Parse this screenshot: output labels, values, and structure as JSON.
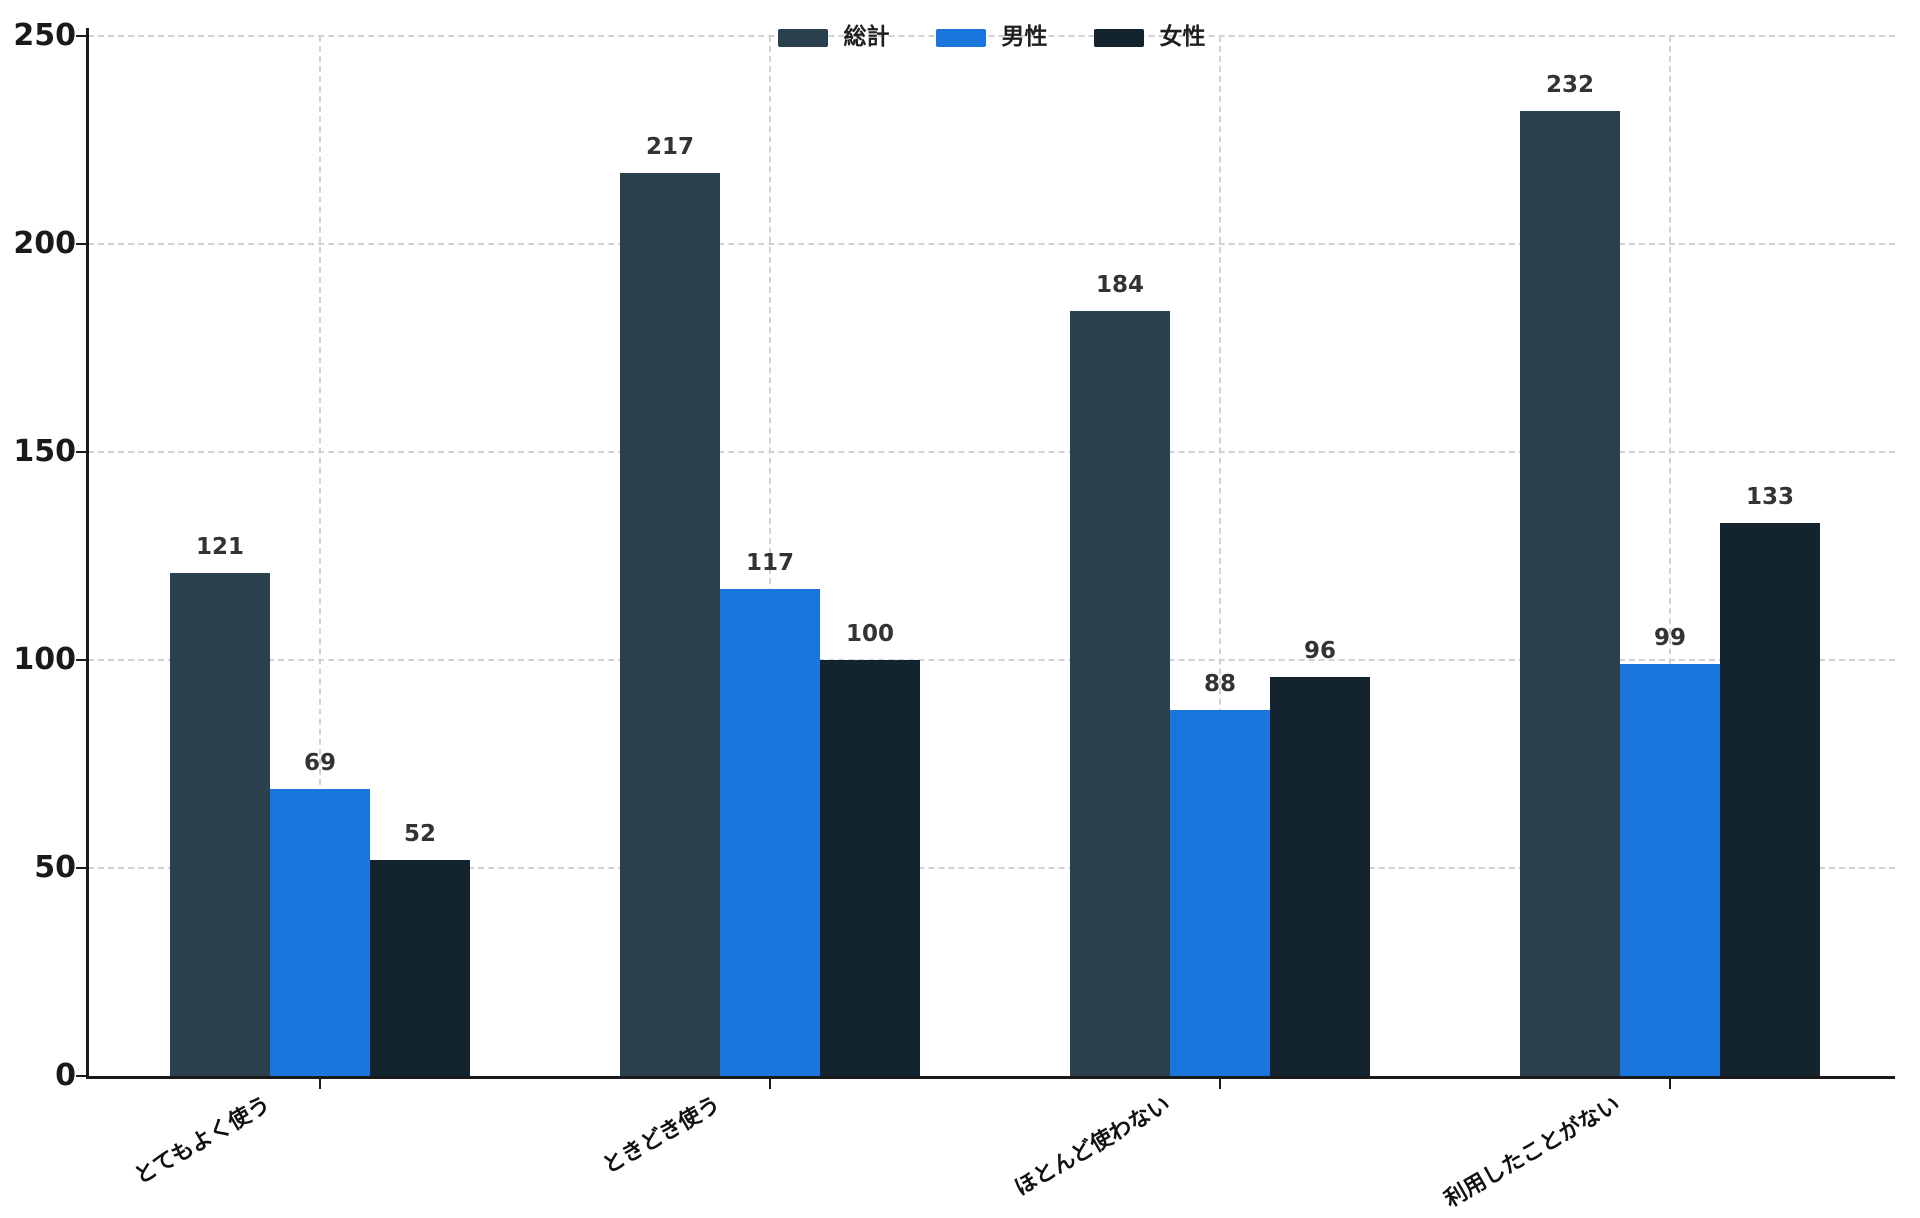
{
  "chart_data": {
    "type": "bar",
    "title": "",
    "xlabel": "",
    "ylabel": "",
    "categories": [
      "とてもよく使う",
      "ときどき使う",
      "ほとんど使わない",
      "利用したことがない"
    ],
    "series": [
      {
        "key": "total",
        "name": "総計",
        "color": "#2b404d",
        "values": [
          121,
          217,
          184,
          232
        ]
      },
      {
        "key": "male",
        "name": "男性",
        "color": "#1a76dd",
        "values": [
          69,
          117,
          88,
          99
        ]
      },
      {
        "key": "female",
        "name": "女性",
        "color": "#14242f",
        "values": [
          52,
          100,
          96,
          133
        ]
      }
    ],
    "ylim": [
      0,
      250
    ],
    "yticks": [
      0,
      50,
      100,
      150,
      200,
      250
    ],
    "grid": true,
    "grid_style": "dashed",
    "legend_position": "top-center",
    "value_labels": true,
    "background_color": "#ffffff",
    "axis_color": "#1a1a1a",
    "gridline_color": "#d2d2d2"
  }
}
